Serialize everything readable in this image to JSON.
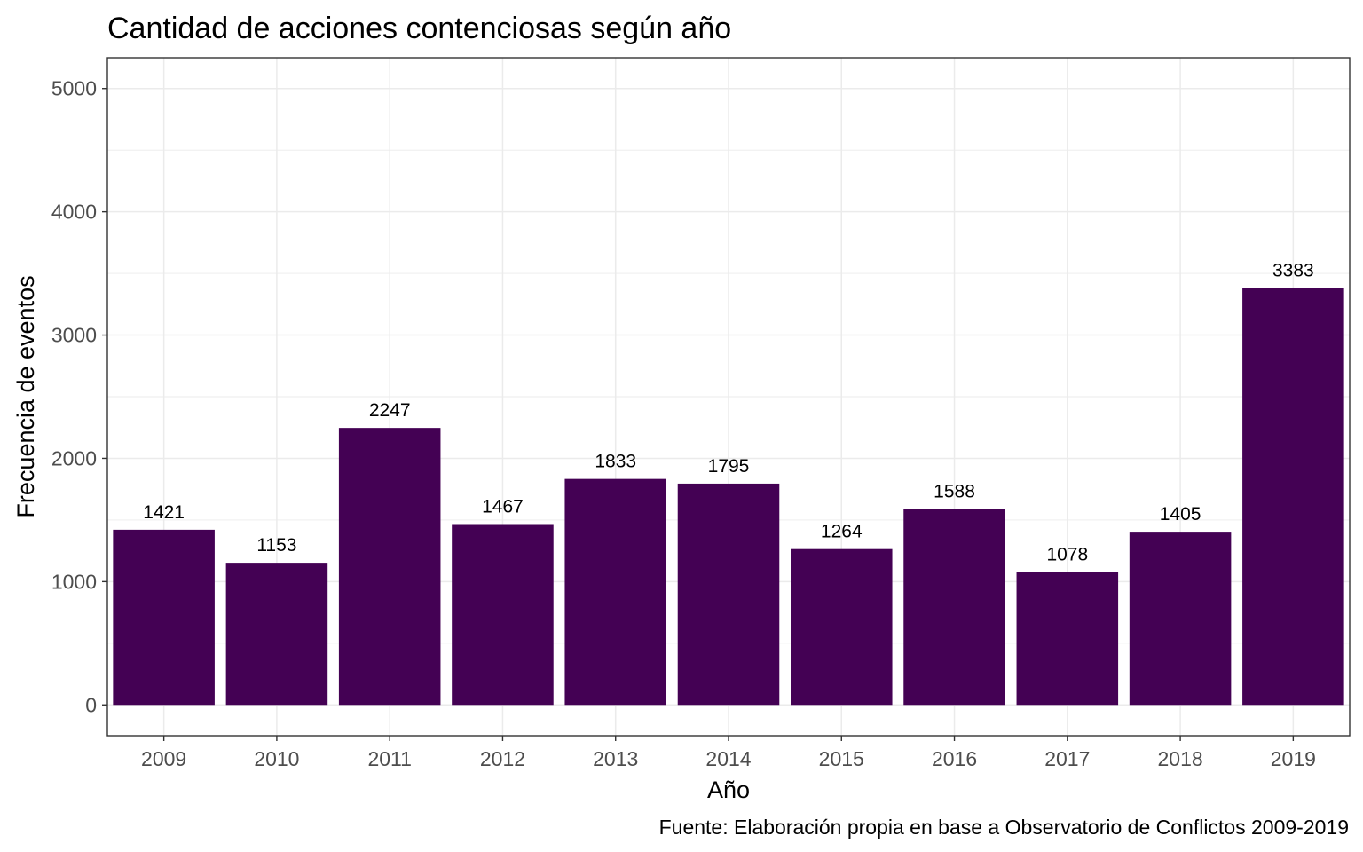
{
  "chart_data": {
    "type": "bar",
    "title": "Cantidad de acciones contenciosas según año",
    "xlabel": "Año",
    "ylabel": "Frecuencia de eventos",
    "caption": "Fuente: Elaboración propia en base a Observatorio de Conflictos 2009-2019",
    "categories": [
      "2009",
      "2010",
      "2011",
      "2012",
      "2013",
      "2014",
      "2015",
      "2016",
      "2017",
      "2018",
      "2019"
    ],
    "values": [
      1421,
      1153,
      2247,
      1467,
      1833,
      1795,
      1264,
      1588,
      1078,
      1405,
      3383
    ],
    "data_labels": [
      "1421",
      "1153",
      "2247",
      "1467",
      "1833",
      "1795",
      "1264",
      "1588",
      "1078",
      "1405",
      "3383"
    ],
    "ylim": [
      -250,
      5250
    ],
    "yticks": [
      0,
      1000,
      2000,
      3000,
      4000,
      5000
    ],
    "ytick_labels": [
      "0",
      "1000",
      "2000",
      "3000",
      "4000",
      "5000"
    ],
    "grid": true,
    "legend": "none",
    "colors": {
      "bar": "#440154",
      "grid": "#ebebeb",
      "panel_border": "#333333",
      "tick_text": "#4d4d4d"
    }
  }
}
